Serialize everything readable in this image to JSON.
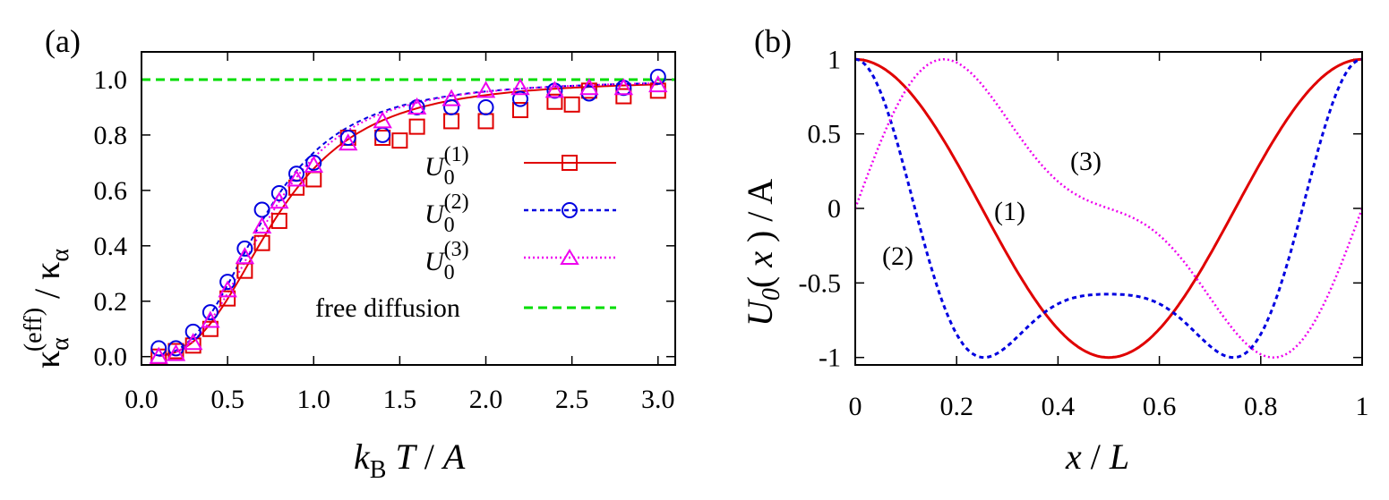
{
  "chart_data": [
    {
      "type": "line",
      "panel_label": "(a)",
      "xlabel": "k_B T / A",
      "ylabel": "κ_α^(eff) / κ_α",
      "xlim": [
        0,
        3.1
      ],
      "ylim": [
        -0.03,
        1.1
      ],
      "xticks": [
        "0.0",
        "0.5",
        "1.0",
        "1.5",
        "2.0",
        "2.5",
        "3.0"
      ],
      "yticks": [
        "0.0",
        "0.2",
        "0.4",
        "0.6",
        "0.8",
        "1.0"
      ],
      "legend_position": "lower-right",
      "series": [
        {
          "name": "U_0^(1)",
          "color": "#e00000",
          "marker": "square",
          "line": "solid",
          "x": [
            0.1,
            0.2,
            0.3,
            0.4,
            0.5,
            0.6,
            0.7,
            0.8,
            0.9,
            1.0,
            1.2,
            1.4,
            1.5,
            1.6,
            1.8,
            2.0,
            2.2,
            2.4,
            2.5,
            2.6,
            2.8,
            3.0
          ],
          "values": [
            0.0,
            0.02,
            0.04,
            0.1,
            0.21,
            0.31,
            0.41,
            0.49,
            0.61,
            0.64,
            0.79,
            0.79,
            0.78,
            0.83,
            0.85,
            0.85,
            0.89,
            0.92,
            0.91,
            0.96,
            0.94,
            0.96
          ]
        },
        {
          "name": "U_0^(2)",
          "color": "#0000e0",
          "marker": "circle",
          "line": "dashed",
          "x": [
            0.1,
            0.2,
            0.3,
            0.4,
            0.5,
            0.6,
            0.7,
            0.8,
            0.9,
            1.0,
            1.2,
            1.4,
            1.6,
            1.8,
            2.0,
            2.2,
            2.4,
            2.6,
            2.8,
            3.0
          ],
          "values": [
            0.03,
            0.03,
            0.09,
            0.16,
            0.27,
            0.39,
            0.53,
            0.59,
            0.66,
            0.7,
            0.79,
            0.8,
            0.9,
            0.9,
            0.9,
            0.93,
            0.96,
            0.95,
            0.97,
            1.01
          ]
        },
        {
          "name": "U_0^(3)",
          "color": "#ee00ee",
          "marker": "triangle",
          "line": "dotted",
          "x": [
            0.1,
            0.2,
            0.3,
            0.4,
            0.5,
            0.6,
            0.7,
            0.8,
            0.9,
            1.0,
            1.2,
            1.4,
            1.6,
            1.8,
            2.0,
            2.2,
            2.4,
            2.6,
            2.8,
            3.0
          ],
          "values": [
            0.0,
            0.01,
            0.05,
            0.13,
            0.24,
            0.36,
            0.47,
            0.56,
            0.64,
            0.69,
            0.77,
            0.85,
            0.9,
            0.93,
            0.96,
            0.97,
            0.96,
            0.97,
            0.97,
            0.98
          ]
        },
        {
          "name": "free diffusion",
          "color": "#00dd00",
          "line": "dashed",
          "x": [
            0,
            3.1
          ],
          "values": [
            1.0,
            1.0
          ]
        }
      ]
    },
    {
      "type": "line",
      "panel_label": "(b)",
      "xlabel": "x / L",
      "ylabel": "U_0( x ) / A",
      "xlim": [
        0,
        1
      ],
      "ylim": [
        -1.05,
        1.05
      ],
      "xticks": [
        "0",
        "0.2",
        "0.4",
        "0.6",
        "0.8",
        "1"
      ],
      "yticks": [
        "-1",
        "-0.5",
        "0",
        "0.5",
        "1"
      ],
      "series": [
        {
          "name": "(1)",
          "color": "#e00000",
          "line": "solid"
        },
        {
          "name": "(2)",
          "color": "#0000e0",
          "line": "dashed"
        },
        {
          "name": "(3)",
          "color": "#ee00ee",
          "line": "dotted"
        }
      ]
    }
  ]
}
